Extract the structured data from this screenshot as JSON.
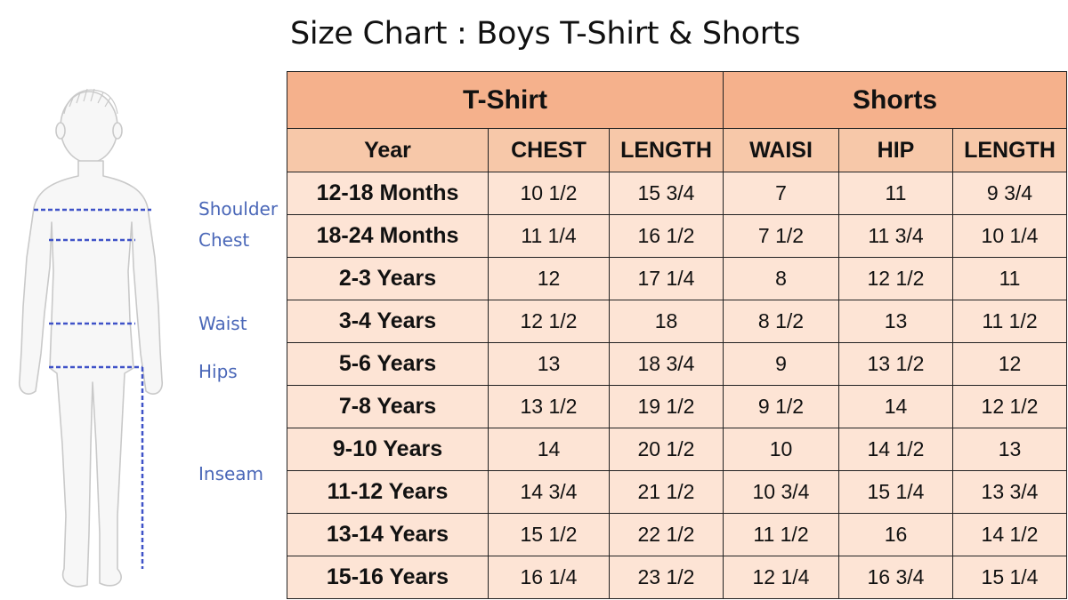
{
  "title": "Size Chart : Boys T-Shirt & Shorts",
  "measure_labels": [
    "Shoulder",
    "Chest",
    "Waist",
    "Hips",
    "Inseam"
  ],
  "table": {
    "groups": [
      "T-Shirt",
      "Shorts"
    ],
    "columns": [
      "Year",
      "CHEST",
      "LENGTH",
      "WAISI",
      "HIP",
      "LENGTH"
    ],
    "rows": [
      [
        "12-18 Months",
        "10 1/2",
        "15 3/4",
        "7",
        "11",
        "9 3/4"
      ],
      [
        "18-24 Months",
        "11 1/4",
        "16 1/2",
        "7 1/2",
        "11 3/4",
        "10 1/4"
      ],
      [
        "2-3 Years",
        "12",
        "17 1/4",
        "8",
        "12 1/2",
        "11"
      ],
      [
        "3-4 Years",
        "12 1/2",
        "18",
        "8 1/2",
        "13",
        "11 1/2"
      ],
      [
        "5-6 Years",
        "13",
        "18 3/4",
        "9",
        "13 1/2",
        "12"
      ],
      [
        "7-8 Years",
        "13 1/2",
        "19 1/2",
        "9 1/2",
        "14",
        "12 1/2"
      ],
      [
        "9-10 Years",
        "14",
        "20 1/2",
        "10",
        "14 1/2",
        "13"
      ],
      [
        "11-12 Years",
        "14 3/4",
        "21 1/2",
        "10 3/4",
        "15 1/4",
        "13 3/4"
      ],
      [
        "13-14 Years",
        "15 1/2",
        "22 1/2",
        "11 1/2",
        "16",
        "14 1/2"
      ],
      [
        "15-16 Years",
        "16 1/4",
        "23 1/2",
        "12 1/4",
        "16 3/4",
        "15 1/4"
      ]
    ]
  }
}
